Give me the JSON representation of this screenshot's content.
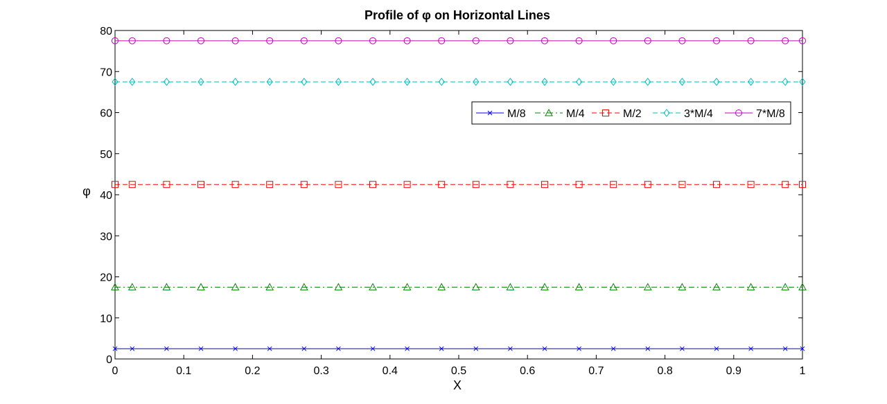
{
  "chart_data": {
    "type": "line",
    "title_parts": [
      "Profile of ",
      "φ",
      " on Horizontal Lines"
    ],
    "xlabel": "X",
    "ylabel": "φ",
    "xlim": [
      0,
      1
    ],
    "ylim": [
      0,
      80
    ],
    "xticks": [
      0,
      0.1,
      0.2,
      0.3,
      0.4,
      0.5,
      0.6,
      0.7,
      0.8,
      0.9,
      1
    ],
    "xtick_labels": [
      "0",
      "0.1",
      "0.2",
      "0.3",
      "0.4",
      "0.5",
      "0.6",
      "0.7",
      "0.8",
      "0.9",
      "1"
    ],
    "yticks": [
      0,
      10,
      20,
      30,
      40,
      50,
      60,
      70,
      80
    ],
    "ytick_labels": [
      "0",
      "10",
      "20",
      "30",
      "40",
      "50",
      "60",
      "70",
      "80"
    ],
    "grid": false,
    "legend_position": "upper-right",
    "x": [
      0,
      0.025,
      0.075,
      0.125,
      0.175,
      0.225,
      0.275,
      0.325,
      0.375,
      0.425,
      0.475,
      0.525,
      0.575,
      0.625,
      0.675,
      0.725,
      0.775,
      0.825,
      0.875,
      0.925,
      0.975,
      1
    ],
    "series": [
      {
        "name": "M/8",
        "value": 2.5,
        "color": "#0000ff",
        "dash": "solid",
        "marker": "x"
      },
      {
        "name": "M/4",
        "value": 17.5,
        "color": "#008000",
        "dash": "dashdot",
        "marker": "triangle"
      },
      {
        "name": "M/2",
        "value": 42.5,
        "color": "#ff0000",
        "dash": "dashed",
        "marker": "square"
      },
      {
        "name": "3*M/4",
        "value": 67.5,
        "color": "#00bfbf",
        "dash": "dashed",
        "marker": "diamond"
      },
      {
        "name": "7*M/8",
        "value": 77.5,
        "color": "#bf00bf",
        "dash": "solid",
        "marker": "circle"
      }
    ]
  }
}
